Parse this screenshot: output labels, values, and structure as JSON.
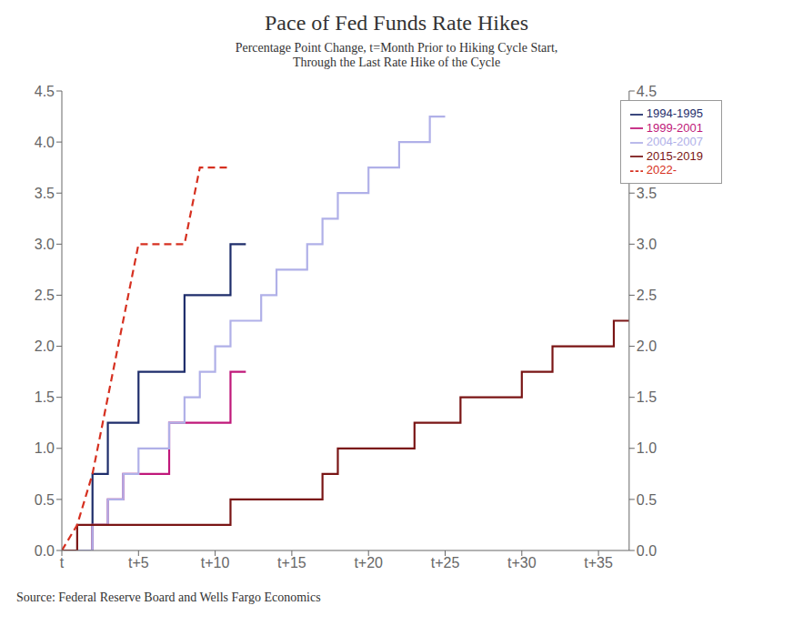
{
  "chart_data": {
    "type": "line",
    "title": "Pace of Fed Funds Rate Hikes",
    "subtitle": "Percentage Point Change, t=Month Prior to Hiking Cycle Start,\nThrough the Last Rate Hike of the Cycle",
    "annotations": [
      "Source: Federal Reserve Board and Wells Fargo Economics"
    ],
    "xlim": [
      0,
      37
    ],
    "xticks": [
      {
        "value": 0,
        "label": "t"
      },
      {
        "value": 5,
        "label": "t+5"
      },
      {
        "value": 10,
        "label": "t+10"
      },
      {
        "value": 15,
        "label": "t+15"
      },
      {
        "value": 20,
        "label": "t+20"
      },
      {
        "value": 25,
        "label": "t+25"
      },
      {
        "value": 30,
        "label": "t+30"
      },
      {
        "value": 35,
        "label": "t+35"
      }
    ],
    "ylim": [
      0.0,
      4.5
    ],
    "yticks": [
      {
        "value": 0,
        "label": "0.0"
      },
      0.5,
      {
        "value": 1,
        "label": "1.0"
      },
      1.5,
      {
        "value": 2,
        "label": "2.0"
      },
      2.5,
      {
        "value": 3,
        "label": "3.0"
      },
      3.5,
      {
        "value": 4,
        "label": "4.0"
      },
      4.5
    ],
    "y2lim": [
      0.0,
      4.5
    ],
    "y2ticks": [
      {
        "value": 0,
        "label": "0.0"
      },
      0.5,
      {
        "value": 1,
        "label": "1.0"
      },
      1.5,
      {
        "value": 2,
        "label": "2.0"
      },
      2.5,
      {
        "value": 3,
        "label": "3.0"
      },
      3.5,
      {
        "value": 4,
        "label": "4.0"
      },
      4.5
    ],
    "legend": "upper right",
    "series": [
      {
        "name": "1994-1995",
        "color": "#1e2d6b",
        "type": "step",
        "line_style": "solid",
        "x": [
          0,
          1,
          2,
          3,
          4,
          5,
          6,
          7,
          8,
          9,
          10,
          11,
          12
        ],
        "values": [
          0.0,
          0.0,
          0.75,
          1.25,
          1.25,
          1.75,
          1.75,
          1.75,
          2.5,
          2.5,
          2.5,
          3.0,
          3.0
        ]
      },
      {
        "name": "1999-2001",
        "color": "#c0187a",
        "type": "step",
        "line_style": "solid",
        "x": [
          0,
          1,
          2,
          3,
          4,
          5,
          6,
          7,
          8,
          9,
          10,
          11,
          12
        ],
        "values": [
          0.0,
          0.0,
          0.25,
          0.5,
          0.75,
          0.75,
          0.75,
          1.25,
          1.25,
          1.25,
          1.25,
          1.75,
          1.75
        ]
      },
      {
        "name": "2004-2007",
        "color": "#b0b0e8",
        "type": "step",
        "line_style": "solid",
        "x": [
          0,
          1,
          2,
          3,
          4,
          5,
          6,
          7,
          8,
          9,
          10,
          11,
          12,
          13,
          14,
          15,
          16,
          17,
          18,
          19,
          20,
          21,
          22,
          23,
          24,
          25
        ],
        "values": [
          0.0,
          0.0,
          0.25,
          0.5,
          0.75,
          1.0,
          1.0,
          1.25,
          1.5,
          1.75,
          2.0,
          2.25,
          2.25,
          2.5,
          2.75,
          2.75,
          3.0,
          3.25,
          3.5,
          3.5,
          3.75,
          3.75,
          4.0,
          4.0,
          4.25,
          4.25
        ]
      },
      {
        "name": "2015-2019",
        "color": "#7a1515",
        "type": "step",
        "line_style": "solid",
        "x": [
          0,
          1,
          2,
          3,
          4,
          5,
          6,
          7,
          8,
          9,
          10,
          11,
          12,
          13,
          14,
          15,
          16,
          17,
          18,
          19,
          20,
          21,
          22,
          23,
          24,
          25,
          26,
          27,
          28,
          29,
          30,
          31,
          32,
          33,
          34,
          35,
          36,
          37
        ],
        "values": [
          0.0,
          0.25,
          0.25,
          0.25,
          0.25,
          0.25,
          0.25,
          0.25,
          0.25,
          0.25,
          0.25,
          0.5,
          0.5,
          0.5,
          0.5,
          0.5,
          0.5,
          0.75,
          1.0,
          1.0,
          1.0,
          1.0,
          1.0,
          1.25,
          1.25,
          1.25,
          1.5,
          1.5,
          1.5,
          1.5,
          1.75,
          1.75,
          2.0,
          2.0,
          2.0,
          2.0,
          2.25,
          2.25
        ]
      },
      {
        "name": "2022-",
        "color": "#d63020",
        "type": "line",
        "line_style": "dashed",
        "x": [
          0,
          1,
          2,
          3,
          4,
          5,
          6,
          7,
          8,
          9,
          10,
          11
        ],
        "values": [
          0.0,
          0.25,
          0.75,
          1.5,
          2.25,
          3.0,
          3.0,
          3.0,
          3.0,
          3.75,
          3.75,
          3.75
        ]
      }
    ]
  }
}
